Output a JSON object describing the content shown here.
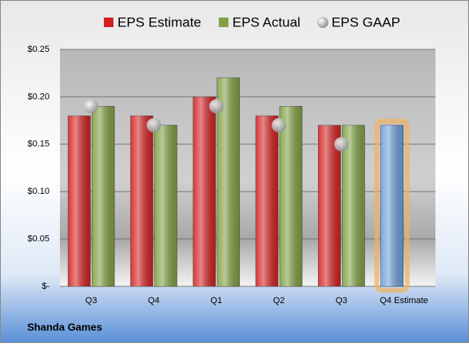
{
  "chart_data": {
    "type": "bar",
    "categories": [
      "Q3",
      "Q4",
      "Q1",
      "Q2",
      "Q3",
      "Q4 Estimate"
    ],
    "series": [
      {
        "name": "EPS Estimate",
        "color": "#d42020",
        "values": [
          0.18,
          0.18,
          0.2,
          0.18,
          0.17,
          0.17
        ]
      },
      {
        "name": "EPS Actual",
        "color": "#7fa040",
        "values": [
          0.19,
          0.17,
          0.22,
          0.19,
          0.17,
          null
        ]
      },
      {
        "name": "EPS GAAP",
        "color": "#b0b4b8",
        "marker": "circle",
        "values": [
          0.19,
          0.17,
          0.19,
          0.17,
          0.15,
          null
        ]
      }
    ],
    "highlight": {
      "index": 5,
      "color": "#6f9fd8",
      "glow": "#f0b060"
    },
    "ylim": [
      0,
      0.25
    ],
    "yticks": [
      {
        "value": 0,
        "label": "$-"
      },
      {
        "value": 0.05,
        "label": "$0.05"
      },
      {
        "value": 0.1,
        "label": "$0.10"
      },
      {
        "value": 0.15,
        "label": "$0.15"
      },
      {
        "value": 0.2,
        "label": "$0.20"
      },
      {
        "value": 0.25,
        "label": "$0.25"
      }
    ],
    "grid": true,
    "footer": "Shanda Games"
  }
}
